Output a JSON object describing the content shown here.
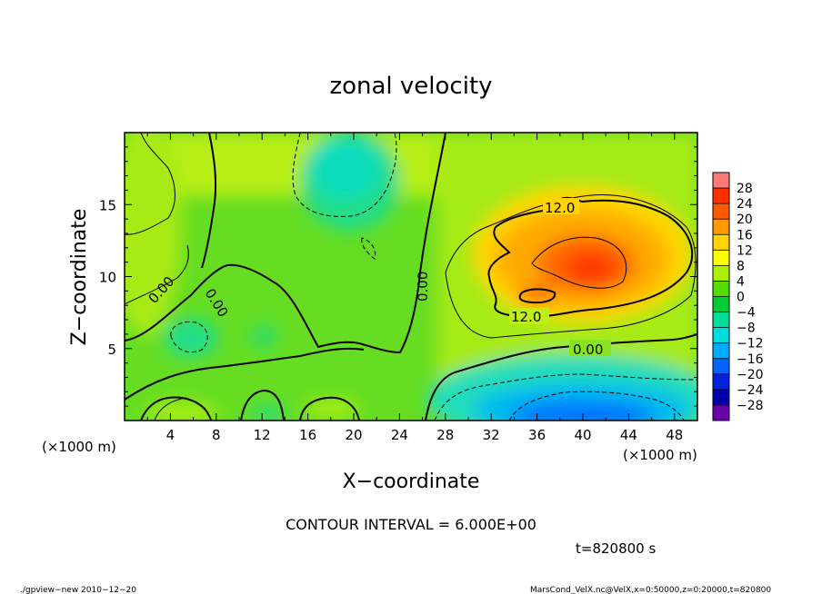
{
  "chart_data": {
    "type": "heatmap",
    "title": "zonal velocity",
    "xlabel": "X−coordinate",
    "ylabel": "Z−coordinate",
    "x_units_label": "(×1000 m)",
    "y_units_label": "(×1000 m)",
    "xlim": [
      0,
      50
    ],
    "ylim": [
      0,
      20
    ],
    "xticks": [
      4,
      8,
      12,
      16,
      20,
      24,
      28,
      32,
      36,
      40,
      44,
      48
    ],
    "yticks": [
      5,
      10,
      15
    ],
    "contour_interval_text": "CONTOUR INTERVAL = 6.000E+00",
    "time_text": "t=820800 s",
    "contour_labels": [
      {
        "text": "12.0",
        "x": 38,
        "z": 14.8
      },
      {
        "text": "12.0",
        "x": 35,
        "z": 7.3
      },
      {
        "text": "0.00",
        "x": 40,
        "z": 5.0
      },
      {
        "text": "0.00",
        "x": 4,
        "z": 9.4
      },
      {
        "text": "0.00",
        "x": 8,
        "z": 8.3
      },
      {
        "text": "0.00",
        "x": 26.5,
        "z": 9.5
      }
    ],
    "colorbar": {
      "labels": [
        "28",
        "24",
        "20",
        "16",
        "12",
        "8",
        "4",
        "0",
        "−4",
        "−8",
        "−12",
        "−16",
        "−20",
        "−24",
        "−28"
      ],
      "colors": [
        "#ff7878",
        "#ff2f00",
        "#ff5a00",
        "#ff9a00",
        "#ffd400",
        "#ffff00",
        "#aaf000",
        "#55dd00",
        "#00cc33",
        "#00dd99",
        "#00dddd",
        "#00aaff",
        "#0066ff",
        "#0022dd",
        "#0000aa",
        "#6a00aa"
      ]
    },
    "features": [
      {
        "name": "positive maximum",
        "x": 40,
        "z": 10.5,
        "value": 24
      },
      {
        "name": "negative minimum",
        "x": 39,
        "z": 0.6,
        "value": -16
      },
      {
        "name": "negative region upper",
        "x": 19,
        "z": 17,
        "value": -6
      }
    ]
  },
  "footer": {
    "left": "./gpview−new  2010−12−20",
    "right": "MarsCond_VelX.nc@VelX,x=0:50000,z=0:20000,t=820800"
  }
}
